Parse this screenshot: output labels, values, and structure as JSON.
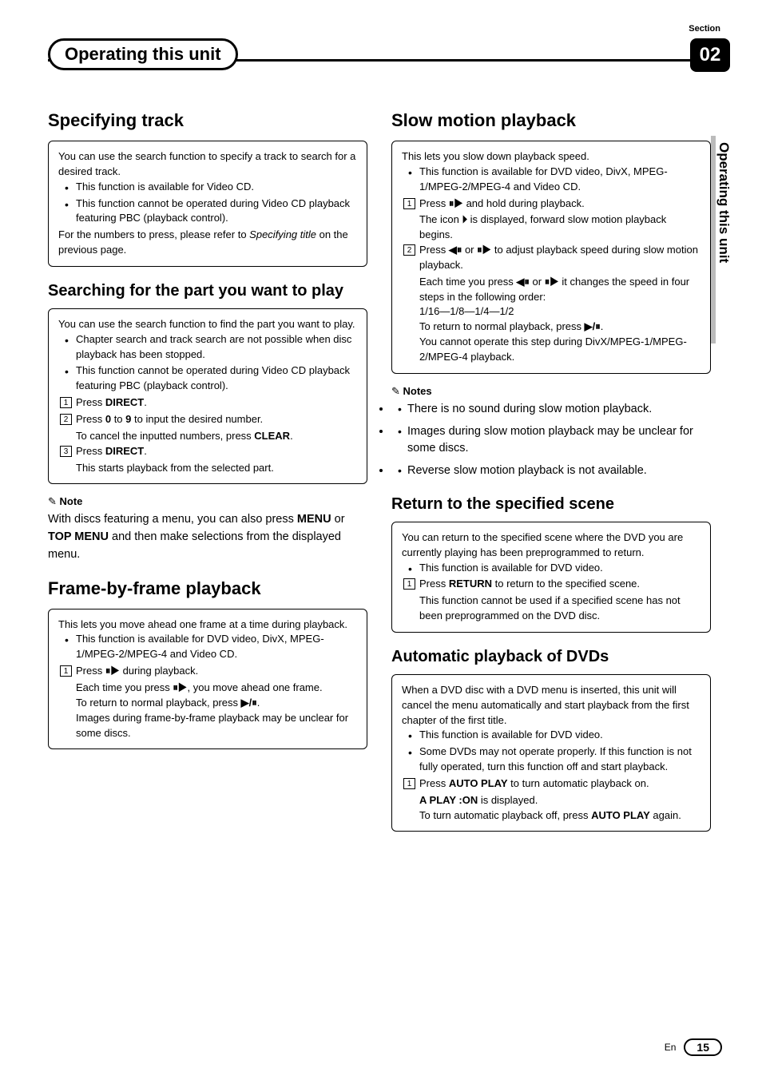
{
  "header": {
    "section_label": "Section",
    "chapter_title": "Operating this unit",
    "section_number": "02",
    "side_tab": "Operating this unit"
  },
  "left": {
    "s1": {
      "title": "Specifying track",
      "intro": "You can use the search function to specify a track to search for a desired track.",
      "b1": "This function is available for Video CD.",
      "b2": "This function cannot be operated during Video CD playback featuring PBC (playback control).",
      "post1": "For the numbers to press, please refer to ",
      "post1_it": "Specifying title",
      "post2": " on the previous page."
    },
    "s2": {
      "title": "Searching for the part you want to play",
      "intro": "You can use the search function to find the part you want to play.",
      "b1": "Chapter search and track search are not possible when disc playback has been stopped.",
      "b2": "This function cannot be operated during Video CD playback featuring PBC (playback control).",
      "n1a": "Press ",
      "n1b": "DIRECT",
      "n1c": ".",
      "n2a": "Press ",
      "n2b": "0",
      "n2c": " to ",
      "n2d": "9",
      "n2e": " to input the desired number.",
      "n2f": "To cancel the inputted numbers, press ",
      "n2g": "CLEAR",
      "n2h": ".",
      "n3a": "Press ",
      "n3b": "DIRECT",
      "n3c": ".",
      "n3d": "This starts playback from the selected part.",
      "note_head": "Note",
      "note1a": "With discs featuring a menu, you can also press ",
      "note1b": "MENU",
      "note1c": " or ",
      "note1d": "TOP MENU",
      "note1e": " and then make selections from the displayed menu."
    },
    "s3": {
      "title": "Frame-by-frame playback",
      "intro": "This lets you move ahead one frame at a time during playback.",
      "b1": "This function is available for DVD video, DivX, MPEG-1/MPEG-2/MPEG-4 and Video CD.",
      "n1a": "Press ",
      "n1b": "⏸▶",
      "n1c": " during playback.",
      "n1d": "Each time you press ",
      "n1e": "⏸▶",
      "n1f": ", you move ahead one frame.",
      "n1g": "To return to normal playback, press ",
      "n1h": "▶/⏸",
      "n1i": ".",
      "n1j": "Images during frame-by-frame playback may be unclear for some discs."
    }
  },
  "right": {
    "s4": {
      "title": "Slow motion playback",
      "intro": "This lets you slow down playback speed.",
      "b1": "This function is available for DVD video, DivX, MPEG-1/MPEG-2/MPEG-4 and Video CD.",
      "n1a": "Press ",
      "n1b": "⏸▶",
      "n1c": " and hold during playback.",
      "n1d": "The icon ",
      "n1e": "⏵",
      "n1f": " is displayed, forward slow motion playback begins.",
      "n2a": "Press ",
      "n2b": "◀⏸",
      "n2c": " or ",
      "n2d": "⏸▶",
      "n2e": " to adjust playback speed during slow motion playback.",
      "n2f": "Each time you press ",
      "n2g": "◀⏸",
      "n2h": " or ",
      "n2i": "⏸▶",
      "n2j": " it changes the speed in four steps in the following order:",
      "n2k": "1/16—1/8—1/4—1/2",
      "n2l": "To return to normal playback, press ",
      "n2m": "▶/⏸",
      "n2n": ".",
      "n2o": "You cannot operate this step during DivX/MPEG-1/MPEG-2/MPEG-4 playback.",
      "notes_head": "Notes",
      "note1": "There is no sound during slow motion playback.",
      "note2": "Images during slow motion playback may be unclear for some discs.",
      "note3": "Reverse slow motion playback is not available."
    },
    "s5": {
      "title": "Return to the specified scene",
      "intro": "You can return to the specified scene where the DVD you are currently playing has been preprogrammed to return.",
      "b1": "This function is available for DVD video.",
      "n1a": "Press ",
      "n1b": "RETURN",
      "n1c": " to return to the specified scene.",
      "n1d": "This function cannot be used if a specified scene has not been preprogrammed on the DVD disc."
    },
    "s6": {
      "title": "Automatic playback of DVDs",
      "intro": "When a DVD disc with a DVD menu is inserted, this unit will cancel the menu automatically and start playback from the first chapter of the first title.",
      "b1": "This function is available for DVD video.",
      "b2": "Some DVDs may not operate properly. If this function is not fully operated, turn this function off and start playback.",
      "n1a": "Press ",
      "n1b": "AUTO PLAY",
      "n1c": " to turn automatic playback on.",
      "n1d": "A PLAY :ON",
      "n1e": " is displayed.",
      "n1f": "To turn automatic playback off, press ",
      "n1g": "AUTO PLAY",
      "n1h": " again."
    }
  },
  "footer": {
    "lang": "En",
    "page": "15"
  }
}
